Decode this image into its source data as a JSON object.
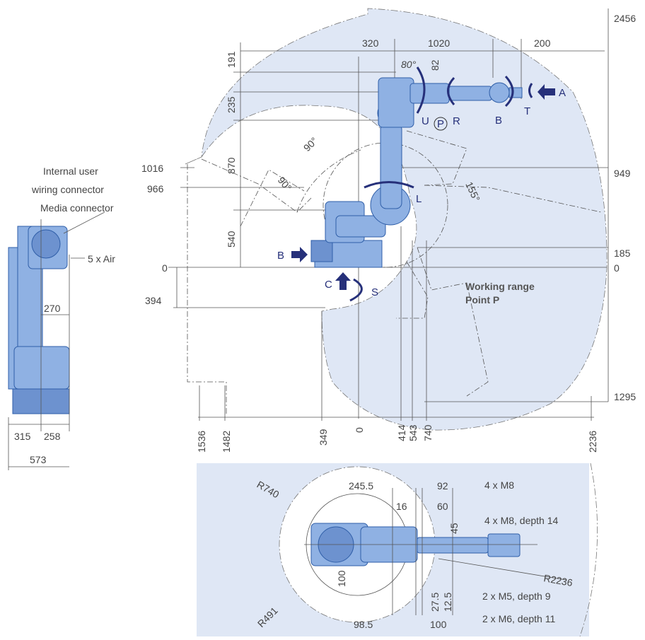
{
  "side_view": {
    "label_connectors_line1": "Internal user",
    "label_connectors_line2": "wiring connector",
    "label_connectors_line3": "Media connector",
    "label_air": "5 x Air",
    "dims": {
      "d270": "270",
      "d315": "315",
      "d258": "258",
      "d573": "573"
    }
  },
  "main_view": {
    "top_dims": {
      "d320": "320",
      "d1020": "1020",
      "d200": "200"
    },
    "left_dims": {
      "d191": "191",
      "d82": "82",
      "d235": "235",
      "d870": "870",
      "d540": "540"
    },
    "left_levels": {
      "v1016": "1016",
      "v966": "966",
      "v0": "0",
      "v394": "394"
    },
    "right_levels": {
      "v2456": "2456",
      "v949": "949",
      "v185": "185",
      "v0": "0",
      "v1295": "1295"
    },
    "bottom_dims": {
      "b1536": "1536",
      "b1482": "1482",
      "b349": "349",
      "b0": "0",
      "b414": "414",
      "b543": "543",
      "b740": "740",
      "b2236": "2236"
    },
    "angles": {
      "a80": "80°",
      "a90": "90°",
      "a90b": "90°",
      "a155": "155°"
    },
    "axes": {
      "U": "U",
      "R": "R",
      "P": "P",
      "B1": "B",
      "T": "T",
      "A": "A",
      "L": "L",
      "B2": "B",
      "C": "C",
      "S": "S"
    },
    "working_range_line1": "Working range",
    "working_range_line2": "Point P"
  },
  "top_view": {
    "r740": "R740",
    "r491": "R491",
    "r2236": "R2236",
    "d245_5": "245.5",
    "d92": "92",
    "d16": "16",
    "d60": "60",
    "d45": "45",
    "d100v": "100",
    "d27_5": "27.5",
    "d12_5": "12.5",
    "d98_5": "98.5",
    "d100h": "100",
    "n4m8": "4 x M8",
    "n4m8d14": "4 x M8, depth 14",
    "n2m5": "2 x M5, depth 9",
    "n2m6": "2 x M6, depth 11"
  },
  "colors": {
    "range_fill": "#dfe7f5",
    "robot_fill": "#8fb1e3",
    "robot_stroke": "#2f5ea8",
    "axis_arrow": "#26307a"
  }
}
